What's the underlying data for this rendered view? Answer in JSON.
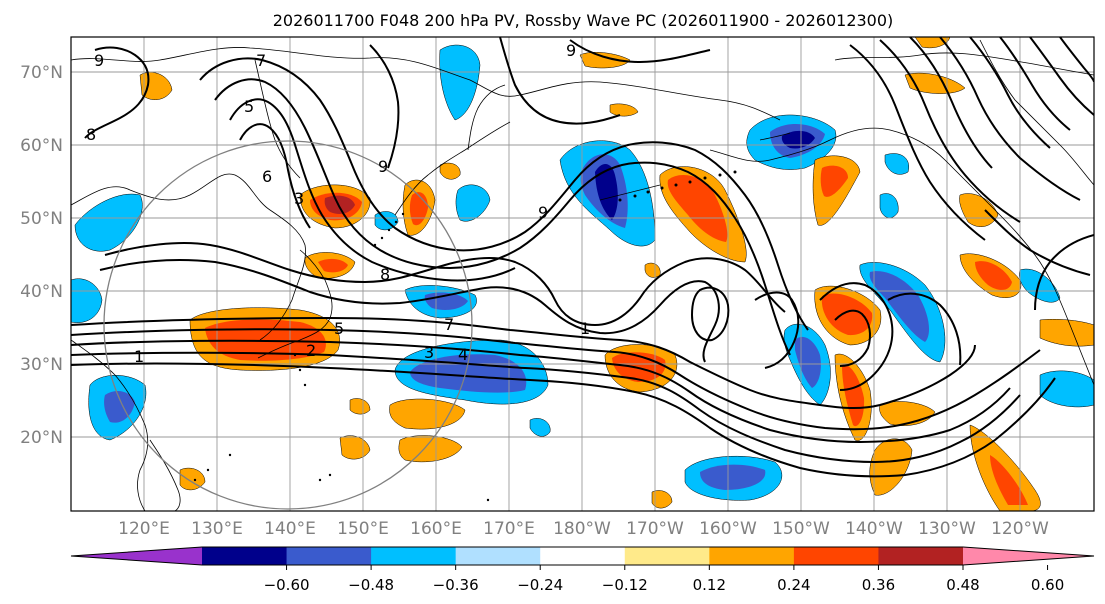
{
  "title": "2026011700 F048 200 hPa PV, Rossby Wave PC (2026011900 - 2026012300)",
  "lat_labels": [
    "70°N",
    "60°N",
    "50°N",
    "40°N",
    "30°N",
    "20°N"
  ],
  "lon_labels": [
    "120°E",
    "130°E",
    "140°E",
    "150°E",
    "160°E",
    "170°E",
    "180°W",
    "170°W",
    "160°W",
    "150°W",
    "140°W",
    "130°W",
    "120°W"
  ],
  "contour_labels": [
    "9",
    "7",
    "5",
    "6",
    "3",
    "8",
    "9",
    "9",
    "8",
    "7",
    "5",
    "4",
    "3",
    "2",
    "1",
    "1",
    "9"
  ],
  "colorbar": {
    "colors": [
      "#9932cc",
      "#00008b",
      "#3a5bcd",
      "#00bfff",
      "#b0e0ff",
      "#ffffff",
      "#ffea8a",
      "#ffa500",
      "#ff4500",
      "#b22222",
      "#ff88aa"
    ],
    "tick_labels": [
      "−0.60",
      "−0.48",
      "−0.36",
      "−0.24",
      "−0.12",
      "0.12",
      "0.24",
      "0.36",
      "0.48",
      "0.60"
    ]
  },
  "colors": {
    "contour": "#000000",
    "grid": "#9a9a9a",
    "coast": "#000000",
    "axis_label": "#808080",
    "circle": "#808080"
  }
}
